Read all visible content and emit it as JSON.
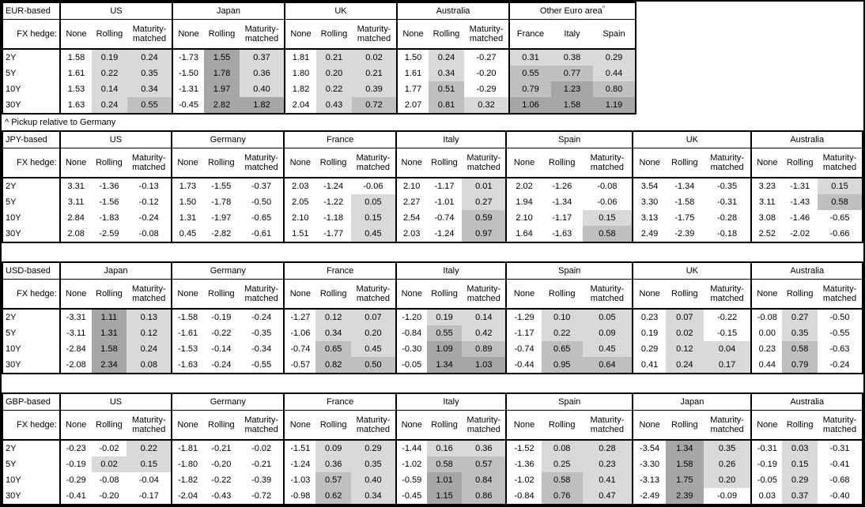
{
  "page": {
    "background": "#ffffff",
    "border_color": "#000000"
  },
  "footnote": {
    "marker": "^",
    "text": "^ Pickup relative to Germany"
  },
  "heatmap": {
    "colors": {
      "low": "#d9d9d9",
      "mid": "#bfbfbf",
      "high": "#a6a6a6"
    },
    "thresholds": {
      "low": "0 <= value < 0.5",
      "mid": "0.5 <= value < 1.0",
      "high": "value >= 1.0",
      "unshaded": "value < 0 or None column"
    }
  },
  "chart_data": [
    {
      "type": "table",
      "title": "EUR-based",
      "row_label_header": "FX hedge:",
      "row_labels": [
        "2Y",
        "5Y",
        "10Y",
        "30Y"
      ],
      "groups": [
        {
          "name": "US",
          "columns": [
            "None",
            "Rolling",
            "Maturity-matched"
          ],
          "heat_columns": [
            1,
            2
          ],
          "values": [
            [
              "1.58",
              "0.19",
              "0.24"
            ],
            [
              "1.61",
              "0.22",
              "0.35"
            ],
            [
              "1.53",
              "0.14",
              "0.34"
            ],
            [
              "1.63",
              "0.24",
              "0.55"
            ]
          ]
        },
        {
          "name": "Japan",
          "columns": [
            "None",
            "Rolling",
            "Maturity-matched"
          ],
          "heat_columns": [
            1,
            2
          ],
          "values": [
            [
              "-1.73",
              "1.55",
              "0.37"
            ],
            [
              "-1.50",
              "1.78",
              "0.36"
            ],
            [
              "-1.31",
              "1.97",
              "0.40"
            ],
            [
              "-0.45",
              "2.82",
              "1.82"
            ]
          ]
        },
        {
          "name": "UK",
          "columns": [
            "None",
            "Rolling",
            "Maturity-matched"
          ],
          "heat_columns": [
            1,
            2
          ],
          "values": [
            [
              "1.81",
              "0.21",
              "0.02"
            ],
            [
              "1.80",
              "0.20",
              "0.21"
            ],
            [
              "1.82",
              "0.22",
              "0.39"
            ],
            [
              "2.04",
              "0.43",
              "0.72"
            ]
          ]
        },
        {
          "name": "Australia",
          "columns": [
            "None",
            "Rolling",
            "Maturity-matched"
          ],
          "heat_columns": [
            1,
            2
          ],
          "values": [
            [
              "1.50",
              "0.24",
              "-0.27"
            ],
            [
              "1.61",
              "0.34",
              "-0.20"
            ],
            [
              "1.77",
              "0.51",
              "-0.29"
            ],
            [
              "2.07",
              "0.81",
              "0.32"
            ]
          ]
        },
        {
          "name": "Other Euro area",
          "superscript": "^",
          "equal_columns": true,
          "columns": [
            "France",
            "Italy",
            "Spain"
          ],
          "heat_columns": [
            0,
            1,
            2
          ],
          "values": [
            [
              "0.31",
              "0.38",
              "0.29"
            ],
            [
              "0.55",
              "0.77",
              "0.44"
            ],
            [
              "0.79",
              "1.23",
              "0.80"
            ],
            [
              "1.06",
              "1.58",
              "1.19"
            ]
          ]
        }
      ]
    },
    {
      "type": "table",
      "title": "JPY-based",
      "row_label_header": "FX hedge:",
      "row_labels": [
        "2Y",
        "5Y",
        "10Y",
        "30Y"
      ],
      "groups": [
        {
          "name": "US",
          "columns": [
            "None",
            "Rolling",
            "Maturity-matched"
          ],
          "heat_columns": [
            1,
            2
          ],
          "values": [
            [
              "3.31",
              "-1.36",
              "-0.13"
            ],
            [
              "3.11",
              "-1.56",
              "-0.12"
            ],
            [
              "2.84",
              "-1.83",
              "-0.24"
            ],
            [
              "2.08",
              "-2.59",
              "-0.08"
            ]
          ]
        },
        {
          "name": "Germany",
          "columns": [
            "None",
            "Rolling",
            "Maturity-matched"
          ],
          "heat_columns": [
            1,
            2
          ],
          "values": [
            [
              "1.73",
              "-1.55",
              "-0.37"
            ],
            [
              "1.50",
              "-1.78",
              "-0.50"
            ],
            [
              "1.31",
              "-1.97",
              "-0.65"
            ],
            [
              "0.45",
              "-2.82",
              "-0.61"
            ]
          ]
        },
        {
          "name": "France",
          "columns": [
            "None",
            "Rolling",
            "Maturity-matched"
          ],
          "heat_columns": [
            1,
            2
          ],
          "values": [
            [
              "2.03",
              "-1.24",
              "-0.06"
            ],
            [
              "2.05",
              "-1.22",
              "0.05"
            ],
            [
              "2.10",
              "-1.18",
              "0.15"
            ],
            [
              "1.51",
              "-1.77",
              "0.45"
            ]
          ]
        },
        {
          "name": "Italy",
          "columns": [
            "None",
            "Rolling",
            "Maturity-matched"
          ],
          "heat_columns": [
            1,
            2
          ],
          "values": [
            [
              "2.10",
              "-1.17",
              "0.01"
            ],
            [
              "2.27",
              "-1.01",
              "0.27"
            ],
            [
              "2.54",
              "-0.74",
              "0.59"
            ],
            [
              "2.03",
              "-1.24",
              "0.97"
            ]
          ]
        },
        {
          "name": "Spain",
          "columns": [
            "None",
            "Rolling",
            "Maturity-matched"
          ],
          "heat_columns": [
            1,
            2
          ],
          "values": [
            [
              "2.02",
              "-1.26",
              "-0.08"
            ],
            [
              "1.94",
              "-1.34",
              "-0.06"
            ],
            [
              "2.10",
              "-1.17",
              "0.15"
            ],
            [
              "1.64",
              "-1.63",
              "0.58"
            ]
          ]
        },
        {
          "name": "UK",
          "columns": [
            "None",
            "Rolling",
            "Maturity-matched"
          ],
          "heat_columns": [
            1,
            2
          ],
          "values": [
            [
              "3.54",
              "-1.34",
              "-0.35"
            ],
            [
              "3.30",
              "-1.58",
              "-0.31"
            ],
            [
              "3.13",
              "-1.75",
              "-0.28"
            ],
            [
              "2.49",
              "-2.39",
              "-0.18"
            ]
          ]
        },
        {
          "name": "Australia",
          "columns": [
            "None",
            "Rolling",
            "Maturity-matched"
          ],
          "heat_columns": [
            1,
            2
          ],
          "values": [
            [
              "3.23",
              "-1.31",
              "0.15"
            ],
            [
              "3.11",
              "-1.43",
              "0.58"
            ],
            [
              "3.08",
              "-1.46",
              "-0.65"
            ],
            [
              "2.52",
              "-2.02",
              "-0.66"
            ]
          ]
        }
      ]
    },
    {
      "type": "table",
      "title": "USD-based",
      "row_label_header": "FX hedge:",
      "row_labels": [
        "2Y",
        "5Y",
        "10Y",
        "30Y"
      ],
      "groups": [
        {
          "name": "Japan",
          "columns": [
            "None",
            "Rolling",
            "Maturity-matched"
          ],
          "heat_columns": [
            1,
            2
          ],
          "values": [
            [
              "-3.31",
              "1.11",
              "0.13"
            ],
            [
              "-3.11",
              "1.31",
              "0.12"
            ],
            [
              "-2.84",
              "1.58",
              "0.24"
            ],
            [
              "-2.08",
              "2.34",
              "0.08"
            ]
          ]
        },
        {
          "name": "Germany",
          "columns": [
            "None",
            "Rolling",
            "Maturity-matched"
          ],
          "heat_columns": [
            1,
            2
          ],
          "values": [
            [
              "-1.58",
              "-0.19",
              "-0.24"
            ],
            [
              "-1.61",
              "-0.22",
              "-0.35"
            ],
            [
              "-1.53",
              "-0.14",
              "-0.34"
            ],
            [
              "-1.63",
              "-0.24",
              "-0.55"
            ]
          ]
        },
        {
          "name": "France",
          "columns": [
            "None",
            "Rolling",
            "Maturity-matched"
          ],
          "heat_columns": [
            1,
            2
          ],
          "values": [
            [
              "-1.27",
              "0.12",
              "0.07"
            ],
            [
              "-1.06",
              "0.34",
              "0.20"
            ],
            [
              "-0.74",
              "0.65",
              "0.45"
            ],
            [
              "-0.57",
              "0.82",
              "0.50"
            ]
          ]
        },
        {
          "name": "Italy",
          "columns": [
            "None",
            "Rolling",
            "Maturity-matched"
          ],
          "heat_columns": [
            1,
            2
          ],
          "values": [
            [
              "-1.20",
              "0.19",
              "0.14"
            ],
            [
              "-0.84",
              "0.55",
              "0.42"
            ],
            [
              "-0.30",
              "1.09",
              "0.89"
            ],
            [
              "-0.05",
              "1.34",
              "1.03"
            ]
          ]
        },
        {
          "name": "Spain",
          "columns": [
            "None",
            "Rolling",
            "Maturity-matched"
          ],
          "heat_columns": [
            1,
            2
          ],
          "values": [
            [
              "-1.29",
              "0.10",
              "0.05"
            ],
            [
              "-1.17",
              "0.22",
              "0.09"
            ],
            [
              "-0.74",
              "0.65",
              "0.45"
            ],
            [
              "-0.44",
              "0.95",
              "0.64"
            ]
          ]
        },
        {
          "name": "UK",
          "columns": [
            "None",
            "Rolling",
            "Maturity-matched"
          ],
          "heat_columns": [
            1,
            2
          ],
          "values": [
            [
              "0.23",
              "0.07",
              "-0.22"
            ],
            [
              "0.19",
              "0.02",
              "-0.15"
            ],
            [
              "0.29",
              "0.12",
              "0.04"
            ],
            [
              "0.41",
              "0.24",
              "0.17"
            ]
          ]
        },
        {
          "name": "Australia",
          "columns": [
            "None",
            "Rolling",
            "Maturity-matched"
          ],
          "heat_columns": [
            1,
            2
          ],
          "values": [
            [
              "-0.08",
              "0.27",
              "-0.50"
            ],
            [
              "0.00",
              "0.35",
              "-0.55"
            ],
            [
              "0.23",
              "0.58",
              "-0.63"
            ],
            [
              "0.44",
              "0.79",
              "-0.24"
            ]
          ]
        }
      ]
    },
    {
      "type": "table",
      "title": "GBP-based",
      "row_label_header": "FX hedge:",
      "row_labels": [
        "2Y",
        "5Y",
        "10Y",
        "30Y"
      ],
      "groups": [
        {
          "name": "US",
          "columns": [
            "None",
            "Rolling",
            "Maturity-matched"
          ],
          "heat_columns": [
            1,
            2
          ],
          "values": [
            [
              "-0.23",
              "-0.02",
              "0.22"
            ],
            [
              "-0.19",
              "0.02",
              "0.15"
            ],
            [
              "-0.29",
              "-0.08",
              "-0.04"
            ],
            [
              "-0.41",
              "-0.20",
              "-0.17"
            ]
          ]
        },
        {
          "name": "Germany",
          "columns": [
            "None",
            "Rolling",
            "Maturity-matched"
          ],
          "heat_columns": [
            1,
            2
          ],
          "values": [
            [
              "-1.81",
              "-0.21",
              "-0.02"
            ],
            [
              "-1.80",
              "-0.20",
              "-0.21"
            ],
            [
              "-1.82",
              "-0.22",
              "-0.39"
            ],
            [
              "-2.04",
              "-0.43",
              "-0.72"
            ]
          ]
        },
        {
          "name": "France",
          "columns": [
            "None",
            "Rolling",
            "Maturity-matched"
          ],
          "heat_columns": [
            1,
            2
          ],
          "values": [
            [
              "-1.51",
              "0.09",
              "0.29"
            ],
            [
              "-1.24",
              "0.36",
              "0.35"
            ],
            [
              "-1.03",
              "0.57",
              "0.40"
            ],
            [
              "-0.98",
              "0.62",
              "0.34"
            ]
          ]
        },
        {
          "name": "Italy",
          "columns": [
            "None",
            "Rolling",
            "Maturity-matched"
          ],
          "heat_columns": [
            1,
            2
          ],
          "values": [
            [
              "-1.44",
              "0.16",
              "0.36"
            ],
            [
              "-1.02",
              "0.58",
              "0.57"
            ],
            [
              "-0.59",
              "1.01",
              "0.84"
            ],
            [
              "-0.45",
              "1.15",
              "0.86"
            ]
          ]
        },
        {
          "name": "Spain",
          "columns": [
            "None",
            "Rolling",
            "Maturity-matched"
          ],
          "heat_columns": [
            1,
            2
          ],
          "values": [
            [
              "-1.52",
              "0.08",
              "0.28"
            ],
            [
              "-1.36",
              "0.25",
              "0.23"
            ],
            [
              "-1.02",
              "0.58",
              "0.41"
            ],
            [
              "-0.84",
              "0.76",
              "0.47"
            ]
          ]
        },
        {
          "name": "Japan",
          "columns": [
            "None",
            "Rolling",
            "Maturity-matched"
          ],
          "heat_columns": [
            1,
            2
          ],
          "values": [
            [
              "-3.54",
              "1.34",
              "0.35"
            ],
            [
              "-3.30",
              "1.58",
              "0.26"
            ],
            [
              "-3.13",
              "1.75",
              "0.20"
            ],
            [
              "-2.49",
              "2.39",
              "-0.09"
            ]
          ]
        },
        {
          "name": "Australia",
          "columns": [
            "None",
            "Rolling",
            "Maturity-matched"
          ],
          "heat_columns": [
            1,
            2
          ],
          "values": [
            [
              "-0.31",
              "0.03",
              "-0.31"
            ],
            [
              "-0.19",
              "0.15",
              "-0.41"
            ],
            [
              "-0.05",
              "0.29",
              "-0.68"
            ],
            [
              "0.03",
              "0.37",
              "-0.40"
            ]
          ]
        }
      ]
    }
  ]
}
